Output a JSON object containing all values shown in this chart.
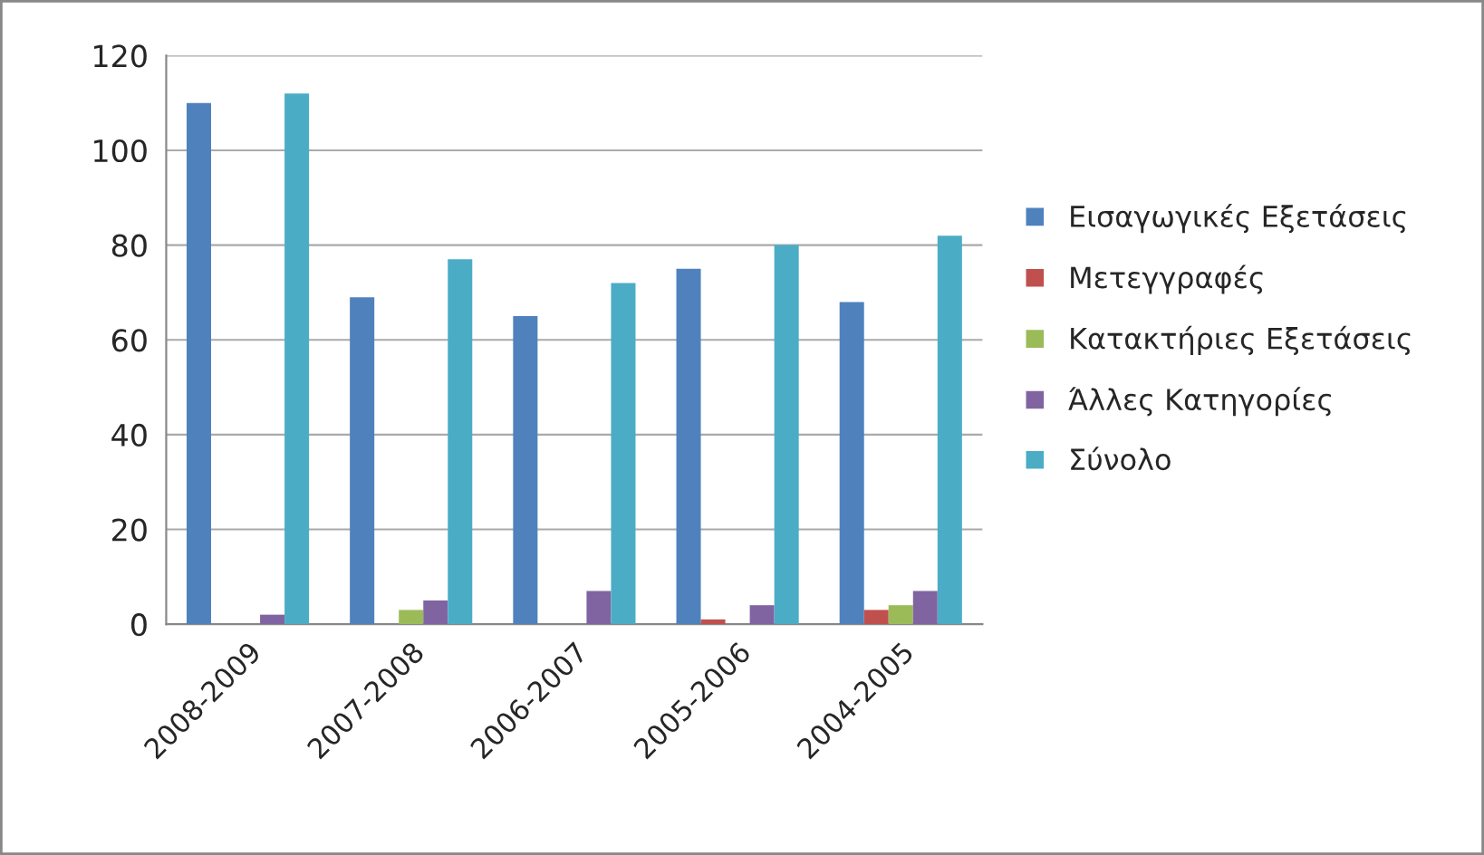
{
  "chart_data": {
    "type": "bar",
    "categories": [
      "2008-2009",
      "2007-2008",
      "2006-2007",
      "2005-2006",
      "2004-2005"
    ],
    "series": [
      {
        "name": "Εισαγωγικές Εξετάσεις",
        "color": "#4f81bd",
        "values": [
          110,
          69,
          65,
          75,
          68
        ]
      },
      {
        "name": "Μετεγγραφές",
        "color": "#c0504d",
        "values": [
          0,
          0,
          0,
          1,
          3
        ]
      },
      {
        "name": "Κατακτήριες Εξετάσεις",
        "color": "#9bbb59",
        "values": [
          0,
          3,
          0,
          0,
          4
        ]
      },
      {
        "name": "Άλλες Κατηγορίες",
        "color": "#8064a2",
        "values": [
          2,
          5,
          7,
          4,
          7
        ]
      },
      {
        "name": "Σύνολο",
        "color": "#4bacc6",
        "values": [
          112,
          77,
          72,
          80,
          82
        ]
      }
    ],
    "ylim": [
      0,
      120
    ],
    "yticks": [
      0,
      20,
      40,
      60,
      80,
      100,
      120
    ],
    "grid": "y",
    "legend": "right"
  }
}
